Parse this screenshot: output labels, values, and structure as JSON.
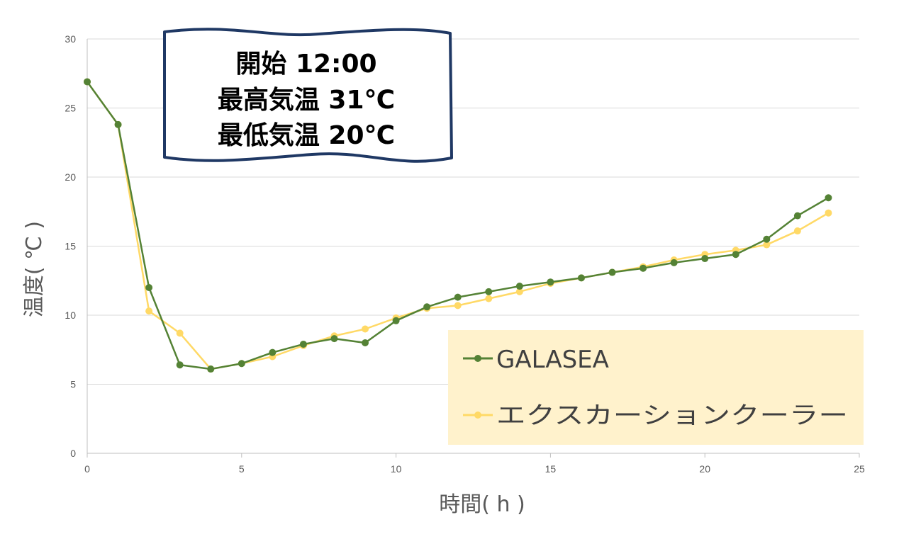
{
  "chart_data": {
    "type": "line",
    "title": "",
    "xlabel": "時間( h )",
    "ylabel": "温度( ℃ )",
    "xlim": [
      0,
      25
    ],
    "ylim": [
      0,
      30
    ],
    "xticks": [
      0,
      5,
      10,
      15,
      20,
      25
    ],
    "yticks": [
      0,
      5,
      10,
      15,
      20,
      25,
      30
    ],
    "grid": "horizontal",
    "legend_position": "bottom-right",
    "x": [
      0,
      1,
      2,
      3,
      4,
      5,
      6,
      7,
      8,
      9,
      10,
      11,
      12,
      13,
      14,
      15,
      16,
      17,
      18,
      19,
      20,
      21,
      22,
      23,
      24
    ],
    "series": [
      {
        "name": "GALASEA",
        "color": "#548235",
        "values": [
          26.9,
          23.8,
          12.0,
          6.4,
          6.1,
          6.5,
          7.3,
          7.9,
          8.3,
          8.0,
          9.6,
          10.6,
          11.3,
          11.7,
          12.1,
          12.4,
          12.7,
          13.1,
          13.4,
          13.8,
          14.1,
          14.4,
          15.5,
          17.2,
          18.5
        ]
      },
      {
        "name": "エクスカーションクーラー",
        "color": "#FFD966",
        "values": [
          26.9,
          23.8,
          10.3,
          8.7,
          6.1,
          6.5,
          7.0,
          7.8,
          8.5,
          9.0,
          9.8,
          10.5,
          10.7,
          11.2,
          11.7,
          12.3,
          12.7,
          13.1,
          13.5,
          14.0,
          14.4,
          14.7,
          15.1,
          16.1,
          17.4
        ]
      }
    ],
    "annotation": {
      "lines": [
        "開始  12:00",
        "最高気温  31℃",
        "最低気温  20℃"
      ],
      "border_color": "#1F3864"
    },
    "legend_background": "#FFF2CC",
    "grid_color": "#D9D9D9"
  }
}
